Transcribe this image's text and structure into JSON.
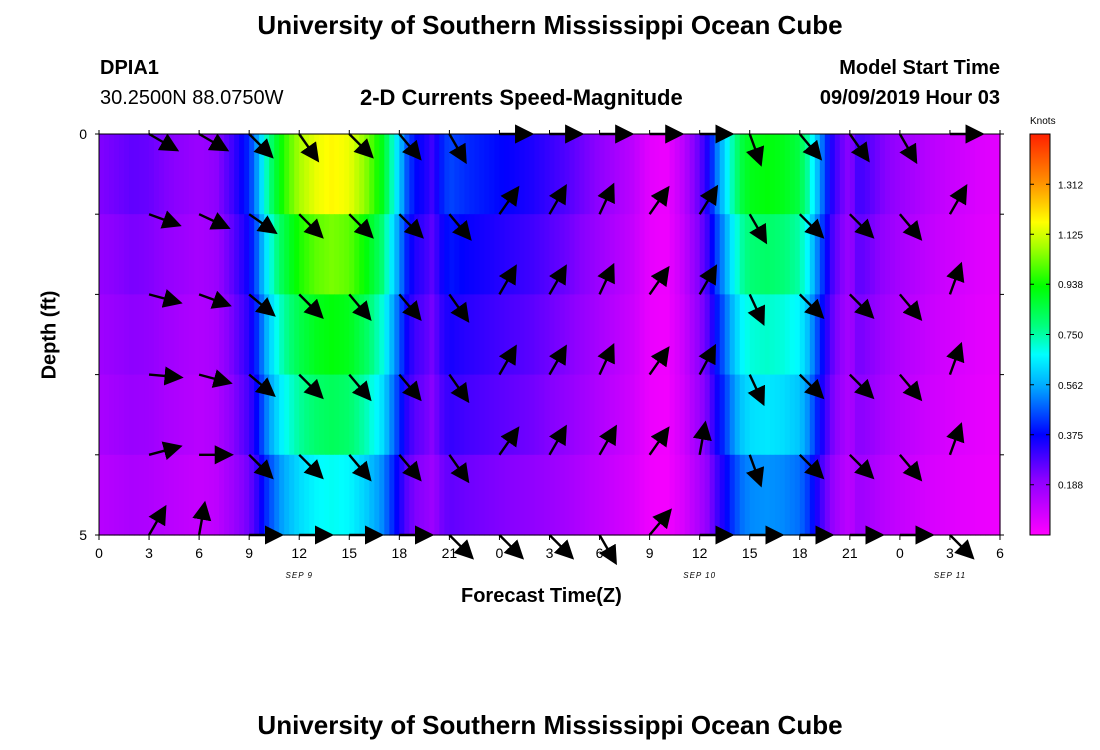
{
  "header": {
    "title": "University of Southern Mississippi Ocean Cube",
    "station": "DPIA1",
    "coords": "30.2500N 88.0750W",
    "subtitle": "2-D Currents Speed-Magnitude",
    "model_label": "Model Start Time",
    "model_time": "09/09/2019 Hour 03"
  },
  "footer": {
    "title": "University of Southern Mississippi Ocean Cube"
  },
  "chart_data": {
    "type": "heatmap",
    "title": "2-D Currents Speed-Magnitude",
    "xlabel": "Forecast Time(Z)",
    "ylabel": "Depth (ft)",
    "x_tick_labels": [
      "0",
      "3",
      "6",
      "9",
      "12",
      "15",
      "18",
      "21",
      "0",
      "3",
      "6",
      "9",
      "12",
      "15",
      "18",
      "21",
      "0",
      "3",
      "6"
    ],
    "date_labels": [
      {
        "label": "SEP 9",
        "at_tick": 4
      },
      {
        "label": "SEP 10",
        "at_tick": 12
      },
      {
        "label": "SEP 11",
        "at_tick": 17
      }
    ],
    "y_tick_labels": [
      "0",
      "5"
    ],
    "ylim": [
      0,
      5
    ],
    "x_hours": [
      0,
      54
    ],
    "depth_layers": [
      0.5,
      1.5,
      2.5,
      3.5,
      4.5
    ],
    "colorbar": {
      "label": "Knots",
      "ticks": [
        "0.188",
        "0.375",
        "0.562",
        "0.750",
        "0.938",
        "1.125",
        "1.312"
      ],
      "range": [
        0,
        1.5
      ]
    },
    "speed_profile": {
      "hours": [
        0,
        1,
        2,
        3,
        4,
        5,
        6,
        7,
        8,
        9,
        9.5,
        10,
        10.5,
        11,
        11.5,
        12,
        13,
        14,
        15,
        16,
        17,
        17.5,
        18,
        18.5,
        19,
        19.5,
        20,
        20.5,
        21,
        22,
        24,
        26,
        28,
        30,
        32,
        33,
        34,
        35,
        36,
        36.5,
        37,
        37.5,
        38,
        38.5,
        39,
        40,
        41,
        42,
        42.5,
        43,
        43.5,
        44,
        44.5,
        45,
        45.5,
        46,
        47,
        48,
        49,
        50,
        51,
        52,
        53,
        54
      ],
      "speed": [
        0.22,
        0.24,
        0.26,
        0.25,
        0.22,
        0.2,
        0.18,
        0.2,
        0.3,
        0.42,
        0.55,
        0.72,
        0.85,
        0.95,
        1.02,
        1.08,
        1.15,
        1.18,
        1.15,
        1.05,
        0.9,
        0.75,
        0.6,
        0.45,
        0.38,
        0.35,
        0.3,
        0.4,
        0.45,
        0.42,
        0.38,
        0.34,
        0.28,
        0.2,
        0.12,
        0.05,
        0.03,
        0.12,
        0.26,
        0.35,
        0.5,
        0.62,
        0.75,
        0.85,
        0.9,
        0.92,
        0.9,
        0.85,
        0.75,
        0.6,
        0.45,
        0.32,
        0.25,
        0.2,
        0.3,
        0.28,
        0.22,
        0.18,
        0.15,
        0.12,
        0.1,
        0.08,
        0.06,
        0.05
      ]
    },
    "depth_factor": [
      1.0,
      0.88,
      0.78,
      0.7,
      0.58
    ],
    "vector_columns_hours": [
      3,
      6,
      9,
      12,
      15,
      18,
      21,
      24,
      27,
      30,
      33,
      36,
      39,
      42,
      45,
      48,
      51
    ],
    "vector_rows_depth": [
      0,
      1,
      2,
      3,
      4,
      5
    ],
    "vector_angles_deg": [
      [
        30,
        30,
        45,
        55,
        45,
        50,
        60,
        0,
        0,
        0,
        0,
        0,
        70,
        50,
        55,
        60,
        0
      ],
      [
        20,
        25,
        35,
        45,
        45,
        45,
        50,
        -55,
        -60,
        -65,
        -55,
        -58,
        60,
        45,
        45,
        50,
        -60
      ],
      [
        15,
        20,
        40,
        45,
        50,
        50,
        55,
        -60,
        -60,
        -65,
        -55,
        -60,
        65,
        45,
        45,
        50,
        -70
      ],
      [
        5,
        15,
        40,
        45,
        50,
        50,
        55,
        -60,
        -60,
        -65,
        -55,
        -62,
        65,
        45,
        45,
        50,
        -70
      ],
      [
        -15,
        0,
        45,
        45,
        50,
        50,
        55,
        -55,
        -60,
        -60,
        -55,
        -80,
        70,
        45,
        45,
        50,
        -70
      ],
      [
        -60,
        -80,
        0,
        0,
        0,
        0,
        45,
        45,
        45,
        60,
        -50,
        0,
        0,
        0,
        0,
        0,
        45
      ]
    ]
  }
}
